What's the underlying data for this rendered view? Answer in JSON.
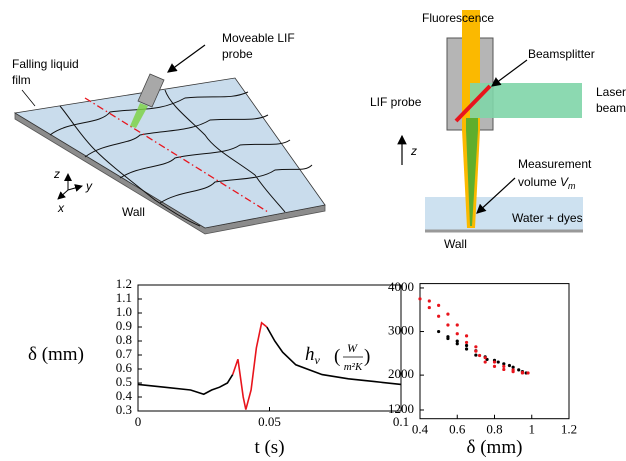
{
  "film_diagram": {
    "film_label": [
      "Falling liquid",
      "film"
    ],
    "probe_label": [
      "Moveable LIF",
      "probe"
    ],
    "wall_label": "Wall",
    "axes": [
      "z",
      "y",
      "x"
    ]
  },
  "probe_diagram": {
    "fluorescence": "Fluorescence",
    "beamsplitter": "Beamsplitter",
    "laser": [
      "Laser",
      "beam"
    ],
    "lif_probe": "LIF probe",
    "z": "z",
    "measurement": [
      "Measurement",
      "volume"
    ],
    "volume_symbol": "V",
    "volume_sub": "m",
    "water": "Water + dyes",
    "wall": "Wall"
  },
  "chart_data": [
    {
      "type": "line",
      "x_label": "t (s)",
      "y_label": "δ (mm)",
      "x": [
        0,
        0.01,
        0.02,
        0.025,
        0.028,
        0.031,
        0.034,
        0.036,
        0.038,
        0.04,
        0.041,
        0.043,
        0.045,
        0.047,
        0.049,
        0.052,
        0.055,
        0.06,
        0.07,
        0.08,
        0.09,
        0.1
      ],
      "series": [
        {
          "color": "#000000",
          "values": [
            0.49,
            0.47,
            0.45,
            0.42,
            0.45,
            0.47,
            0.5,
            0.56,
            null,
            null,
            null,
            null,
            null,
            null,
            0.9,
            0.8,
            0.72,
            0.63,
            0.56,
            0.53,
            0.51,
            0.49
          ]
        },
        {
          "color": "#e8141c",
          "values": [
            null,
            null,
            null,
            null,
            null,
            null,
            null,
            0.56,
            0.67,
            0.4,
            0.31,
            0.45,
            0.75,
            0.93,
            0.9,
            null,
            null,
            null,
            null,
            null,
            null,
            null
          ]
        }
      ],
      "xlim": [
        0,
        0.1
      ],
      "xticks": [
        0,
        0.05,
        0.1
      ],
      "ylim": [
        0.3,
        1.2
      ],
      "yticks": [
        0.3,
        0.4,
        0.5,
        0.6,
        0.7,
        0.8,
        0.9,
        {
          "value": 1,
          "label": "1.0"
        },
        1.1,
        1.2
      ]
    },
    {
      "type": "scatter",
      "x_label": "δ (mm)",
      "y_label": {
        "symbol": "h",
        "sub": "v",
        "num": "W",
        "den": "m²K"
      },
      "series": [
        {
          "color": "#000000",
          "x": [
            0.5,
            0.55,
            0.6,
            0.65,
            0.7,
            0.75,
            0.8,
            0.85,
            0.9,
            0.95,
            0.97,
            0.93,
            0.88,
            0.82,
            0.76,
            0.7,
            0.65,
            0.6,
            0.55
          ],
          "values": [
            3000,
            2880,
            2780,
            2680,
            2560,
            2420,
            2340,
            2260,
            2180,
            2080,
            2050,
            2120,
            2220,
            2300,
            2360,
            2460,
            2600,
            2720,
            2840
          ]
        },
        {
          "color": "#e8141c",
          "x": [
            0.4,
            0.45,
            0.5,
            0.55,
            0.6,
            0.65,
            0.7,
            0.75,
            0.8,
            0.85,
            0.9,
            0.95,
            0.98,
            0.95,
            0.9,
            0.85,
            0.8,
            0.75,
            0.72,
            0.7,
            0.65,
            0.6,
            0.55,
            0.5,
            0.45
          ],
          "values": [
            3750,
            3550,
            3350,
            3150,
            2950,
            2750,
            2550,
            2400,
            2300,
            2200,
            2120,
            2060,
            2050,
            2050,
            2080,
            2130,
            2200,
            2300,
            2450,
            2650,
            2900,
            3150,
            3400,
            3600,
            3700
          ]
        }
      ],
      "xlim": [
        0.4,
        1.2
      ],
      "xticks": [
        0.4,
        0.6,
        0.8,
        1,
        1.2
      ],
      "ylim": [
        1000,
        4100
      ],
      "yticks": [
        1200,
        2000,
        3000,
        4000
      ]
    }
  ]
}
